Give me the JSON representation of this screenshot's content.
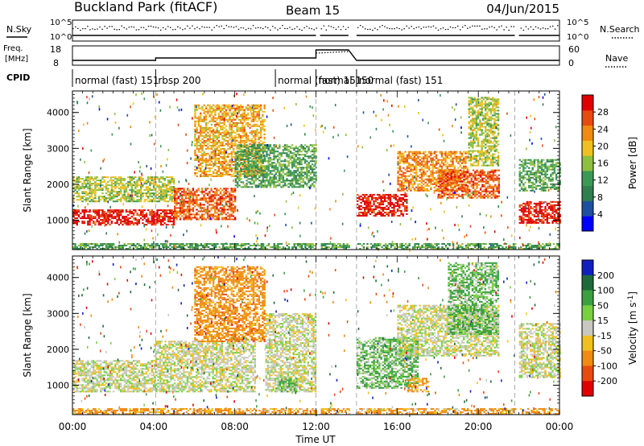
{
  "header": {
    "title": "Buckland Park (fitACF)",
    "beam": "Beam 15",
    "date": "04/Jun/2015"
  },
  "status_panels": {
    "nsky": {
      "label": "N.Sky",
      "right_label": "N.Search",
      "ticks": [
        "10^5",
        "10^0"
      ]
    },
    "freq": {
      "label_line1": "Freq.",
      "label_line2": "[MHz]",
      "left_ticks": [
        "18",
        "8"
      ],
      "right_label": "Nave",
      "right_ticks": [
        "60",
        "0"
      ]
    },
    "cpid": {
      "label": "CPID",
      "segments": [
        {
          "label": "normal (fast) 151",
          "start_hour": 0.0,
          "end_hour": 4.1
        },
        {
          "label": "rbsp 200",
          "start_hour": 4.1,
          "end_hour": 10.0
        },
        {
          "label": "normal (fast) 151",
          "start_hour": 10.0,
          "end_hour": 12.0
        },
        {
          "label": "normal 150",
          "start_hour": 12.0,
          "end_hour": 14.0
        },
        {
          "label": "normal (fast) 151",
          "start_hour": 14.0,
          "end_hour": 24.0
        }
      ]
    }
  },
  "chart_data": [
    {
      "type": "heatmap",
      "ylabel": "Slant Range [km]",
      "xlabel": "Time UT",
      "x_ticks": [
        "00:00",
        "04:00",
        "08:00",
        "12:00",
        "16:00",
        "20:00",
        "00:00"
      ],
      "y_ticks": [
        "1000",
        "2000",
        "3000",
        "4000"
      ],
      "xlim": [
        0,
        24
      ],
      "ylim": [
        180,
        4600
      ],
      "colorbar": {
        "label": "Power [dB]",
        "ticks": [
          "4",
          "8",
          "12",
          "16",
          "20",
          "24",
          "28"
        ],
        "colors": [
          "#0000ff",
          "#1f4fa0",
          "#2f7f4f",
          "#3a9a55",
          "#8fbf3f",
          "#f0c020",
          "#f08a10",
          "#e84b10",
          "#e00000"
        ]
      },
      "data_gaps_hours": [
        [
          12.0,
          12.2
        ],
        [
          13.6,
          14.0
        ],
        [
          21.8,
          22.0
        ]
      ],
      "regions": [
        {
          "hours": [
            0,
            5
          ],
          "range_km": [
            850,
            1300
          ],
          "value": 28
        },
        {
          "hours": [
            0,
            5
          ],
          "range_km": [
            1500,
            2200
          ],
          "value": 16
        },
        {
          "hours": [
            5,
            8
          ],
          "range_km": [
            1000,
            1900
          ],
          "value": 24
        },
        {
          "hours": [
            6,
            9.5
          ],
          "range_km": [
            2200,
            4200
          ],
          "value": 20
        },
        {
          "hours": [
            8,
            12
          ],
          "range_km": [
            1900,
            3100
          ],
          "value": 12
        },
        {
          "hours": [
            14,
            16.5
          ],
          "range_km": [
            1100,
            1700
          ],
          "value": 28
        },
        {
          "hours": [
            16,
            19.5
          ],
          "range_km": [
            1800,
            2900
          ],
          "value": 22
        },
        {
          "hours": [
            18,
            21
          ],
          "range_km": [
            1600,
            2400
          ],
          "value": 24
        },
        {
          "hours": [
            19.5,
            21
          ],
          "range_km": [
            2500,
            4400
          ],
          "value": 16
        },
        {
          "hours": [
            22,
            24
          ],
          "range_km": [
            900,
            1500
          ],
          "value": 28
        },
        {
          "hours": [
            22,
            24
          ],
          "range_km": [
            1800,
            2700
          ],
          "value": 12
        },
        {
          "hours": [
            0,
            24
          ],
          "range_km": [
            180,
            320
          ],
          "value": 12
        }
      ]
    },
    {
      "type": "heatmap",
      "ylabel": "Slant Range [km]",
      "xlabel": "Time UT",
      "x_ticks": [
        "00:00",
        "04:00",
        "08:00",
        "12:00",
        "16:00",
        "20:00",
        "00:00"
      ],
      "y_ticks": [
        "1000",
        "2000",
        "3000",
        "4000"
      ],
      "xlim": [
        0,
        24
      ],
      "ylim": [
        180,
        4600
      ],
      "colorbar": {
        "label": "Velocity [m s^-1]",
        "ticks": [
          "200",
          "100",
          "50",
          "15",
          "-15",
          "-50",
          "-100",
          "-200"
        ],
        "colors": [
          "#1020c0",
          "#1f6a3a",
          "#3aa040",
          "#78d040",
          "#c8c8c0",
          "#f0c020",
          "#f08a10",
          "#e84b10",
          "#e00000"
        ]
      },
      "data_gaps_hours": [
        [
          12.0,
          12.2
        ],
        [
          13.6,
          14.0
        ],
        [
          21.8,
          22.0
        ]
      ],
      "regions": [
        {
          "hours": [
            0,
            4
          ],
          "range_km": [
            800,
            1700
          ],
          "value": 0
        },
        {
          "hours": [
            4,
            9
          ],
          "range_km": [
            800,
            2200
          ],
          "value": 0
        },
        {
          "hours": [
            6,
            9.5
          ],
          "range_km": [
            2200,
            4300
          ],
          "value": -50
        },
        {
          "hours": [
            9.5,
            12
          ],
          "range_km": [
            800,
            3000
          ],
          "value": 0
        },
        {
          "hours": [
            10,
            11
          ],
          "range_km": [
            800,
            1200
          ],
          "value": 30
        },
        {
          "hours": [
            14,
            17
          ],
          "range_km": [
            900,
            2300
          ],
          "value": 30
        },
        {
          "hours": [
            16,
            21
          ],
          "range_km": [
            1800,
            3200
          ],
          "value": 0
        },
        {
          "hours": [
            16.5,
            17.5
          ],
          "range_km": [
            800,
            1200
          ],
          "value": -40
        },
        {
          "hours": [
            18.5,
            21
          ],
          "range_km": [
            2400,
            4400
          ],
          "value": 30
        },
        {
          "hours": [
            22,
            24
          ],
          "range_km": [
            1200,
            2700
          ],
          "value": 0
        },
        {
          "hours": [
            0,
            24
          ],
          "range_km": [
            180,
            320
          ],
          "value": -40
        }
      ]
    }
  ]
}
